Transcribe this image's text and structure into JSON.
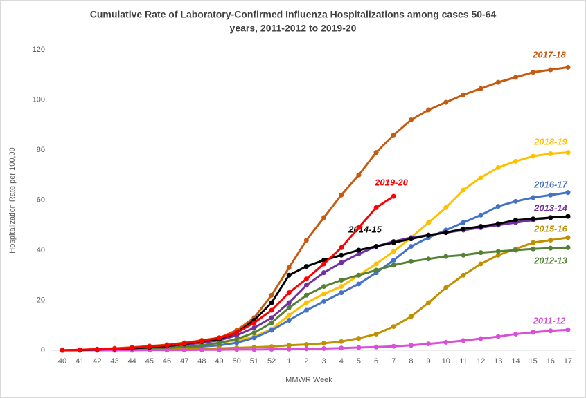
{
  "chart_data": {
    "type": "line",
    "title": [
      "Cumulative Rate of Laboratory-Confirmed  Influenza Hospitalizations among cases 50-64",
      "years, 2011-2012 to 2019-20"
    ],
    "x_label": "MMWR Week",
    "y_label": "Hospitalization Rate per 100,00",
    "categories": [
      "40",
      "41",
      "42",
      "43",
      "44",
      "45",
      "46",
      "47",
      "48",
      "49",
      "50",
      "51",
      "52",
      "1",
      "2",
      "3",
      "4",
      "5",
      "6",
      "7",
      "8",
      "9",
      "10",
      "11",
      "12",
      "13",
      "14",
      "15",
      "16",
      "17"
    ],
    "ylim": [
      0,
      120
    ],
    "yticks": [
      0,
      20,
      40,
      60,
      80,
      100,
      120
    ],
    "grid": false,
    "series": [
      {
        "name": "2017-18",
        "color": "#c55a11",
        "values": [
          0,
          0.2,
          0.5,
          0.8,
          1.2,
          1.7,
          2.2,
          3,
          4,
          5,
          8,
          13,
          22,
          33,
          44,
          53,
          62,
          70,
          79,
          86,
          92,
          96,
          99,
          102,
          104.5,
          107,
          109,
          111,
          112,
          113
        ]
      },
      {
        "name": "2018-19",
        "color": "#ffc000",
        "values": [
          0,
          0.1,
          0.2,
          0.3,
          0.5,
          0.7,
          1,
          1.5,
          2,
          3,
          4,
          5.5,
          8.5,
          14,
          19,
          22.5,
          25.5,
          30,
          34.5,
          39.5,
          45,
          51,
          57,
          64,
          69,
          73,
          75.5,
          77.5,
          78.5,
          79
        ]
      },
      {
        "name": "2016-17",
        "color": "#4472c4",
        "values": [
          0,
          0,
          0.1,
          0.2,
          0.3,
          0.5,
          0.7,
          1,
          1.5,
          2,
          3,
          5,
          8,
          12,
          16,
          19.5,
          23,
          26.5,
          31,
          36,
          41.5,
          45,
          48,
          51,
          54,
          57.5,
          59.5,
          61,
          62,
          63
        ]
      },
      {
        "name": "2013-14",
        "color": "#7030a0",
        "values": [
          0,
          0.1,
          0.3,
          0.5,
          0.8,
          1.2,
          1.6,
          2.2,
          3,
          4,
          6,
          9,
          13,
          19,
          26,
          31,
          35,
          38.5,
          41.5,
          43.5,
          45,
          46,
          47,
          48,
          49,
          50,
          51,
          52,
          53,
          53.5
        ]
      },
      {
        "name": "2015-16",
        "color": "#bf9000",
        "values": [
          0,
          0,
          0.1,
          0.1,
          0.2,
          0.3,
          0.4,
          0.5,
          0.6,
          0.8,
          1,
          1.2,
          1.5,
          2,
          2.3,
          2.8,
          3.5,
          4.8,
          6.5,
          9.5,
          13.5,
          19,
          25,
          30,
          34.5,
          38,
          40.5,
          43,
          44,
          45
        ]
      },
      {
        "name": "2012-13",
        "color": "#548235",
        "values": [
          0,
          0.1,
          0.2,
          0.3,
          0.5,
          0.7,
          1,
          1.4,
          2,
          3,
          4.5,
          7,
          11,
          17,
          22,
          25.5,
          28,
          30,
          32,
          34,
          35.5,
          36.5,
          37.5,
          38,
          39,
          39.5,
          40,
          40.5,
          40.8,
          41
        ]
      },
      {
        "name": "2011-12",
        "color": "#d94fd9",
        "values": [
          0,
          0,
          0,
          0,
          0,
          0.1,
          0.1,
          0.1,
          0.2,
          0.2,
          0.3,
          0.3,
          0.4,
          0.5,
          0.6,
          0.7,
          0.9,
          1.1,
          1.3,
          1.6,
          2,
          2.6,
          3.2,
          3.9,
          4.7,
          5.5,
          6.5,
          7.2,
          7.8,
          8.2
        ]
      },
      {
        "name": "2014-15",
        "color": "#000000",
        "values": [
          0,
          0.1,
          0.3,
          0.5,
          0.8,
          1.2,
          1.7,
          2.5,
          3.5,
          4.5,
          7,
          12,
          19,
          30,
          33.5,
          36,
          38,
          40,
          41.5,
          43,
          44.5,
          46,
          47,
          48.5,
          49.5,
          50.5,
          52,
          52.5,
          53,
          53.5
        ]
      },
      {
        "name": "2019-20",
        "color": "#ff0000",
        "values": [
          0,
          0.2,
          0.4,
          0.6,
          1,
          1.5,
          2,
          2.8,
          3.8,
          5,
          7,
          11,
          16,
          23,
          28.5,
          34.5,
          41,
          49,
          57,
          61.5,
          null,
          null,
          null,
          null,
          null,
          null,
          null,
          null,
          null,
          null
        ]
      }
    ]
  }
}
